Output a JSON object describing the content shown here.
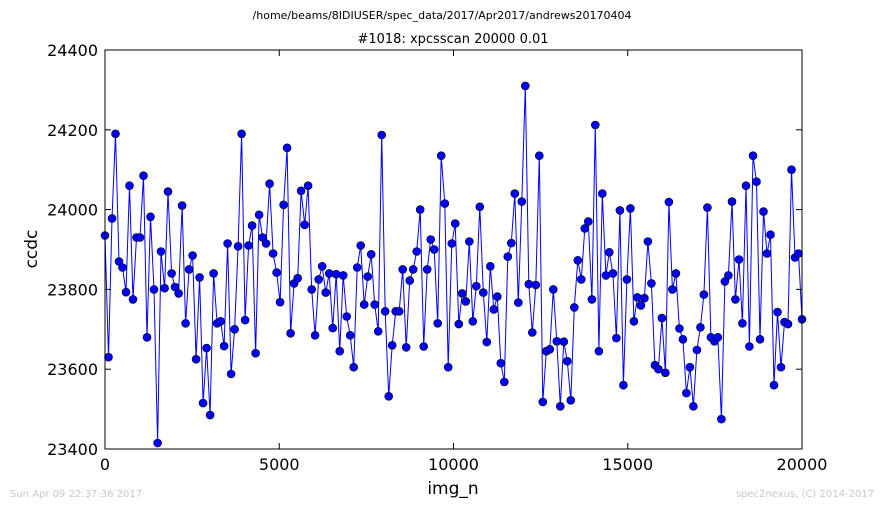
{
  "figure": {
    "suptitle": "/home/beams/8IDIUSER/spec_data/2017/Apr2017/andrews20170404",
    "footer_left": "Sun Apr 09 22:37:36 2017",
    "footer_right": "spec2nexus, (C) 2014-2017"
  },
  "chart_data": {
    "type": "line",
    "title": "#1018: xpcsscan 20000 0.01",
    "xlabel": "img_n",
    "ylabel": "ccdc",
    "xlim": [
      0,
      20000
    ],
    "ylim": [
      23400,
      24400
    ],
    "xticks": [
      0,
      5000,
      10000,
      15000,
      20000
    ],
    "xtick_labels": [
      "0",
      "5000",
      "10000",
      "15000",
      "20000"
    ],
    "yticks": [
      23400,
      23600,
      23800,
      24000,
      24200,
      24400
    ],
    "ytick_labels": [
      "23400",
      "23600",
      "23800",
      "24000",
      "24200",
      "24400"
    ],
    "grid": false,
    "marker": "circle",
    "color": "#0000ff",
    "series": [
      {
        "x": [
          0,
          101,
          201,
          302,
          402,
          503,
          603,
          704,
          804,
          905,
          1005,
          1106,
          1206,
          1307,
          1407,
          1508,
          1608,
          1709,
          1809,
          1910,
          2010,
          2111,
          2211,
          2312,
          2412,
          2513,
          2613,
          2714,
          2814,
          2915,
          3015,
          3116,
          3216,
          3317,
          3417,
          3518,
          3618,
          3719,
          3819,
          3920,
          4020,
          4121,
          4221,
          4322,
          4422,
          4523,
          4623,
          4724,
          4824,
          4925,
          5025,
          5126,
          5226,
          5327,
          5427,
          5528,
          5628,
          5729,
          5829,
          5930,
          6030,
          6131,
          6231,
          6332,
          6432,
          6533,
          6633,
          6734,
          6834,
          6935,
          7035,
          7136,
          7236,
          7337,
          7437,
          7538,
          7638,
          7739,
          7839,
          7940,
          8040,
          8141,
          8241,
          8342,
          8442,
          8543,
          8643,
          8744,
          8844,
          8945,
          9045,
          9146,
          9246,
          9347,
          9447,
          9548,
          9648,
          9749,
          9849,
          9950,
          10050,
          10151,
          10251,
          10352,
          10452,
          10553,
          10653,
          10754,
          10854,
          10955,
          11055,
          11156,
          11256,
          11357,
          11457,
          11558,
          11658,
          11759,
          11859,
          11960,
          12060,
          12161,
          12261,
          12362,
          12462,
          12563,
          12663,
          12764,
          12864,
          12965,
          13065,
          13166,
          13266,
          13367,
          13467,
          13568,
          13668,
          13769,
          13869,
          13970,
          14070,
          14171,
          14271,
          14372,
          14472,
          14573,
          14673,
          14774,
          14874,
          14975,
          15075,
          15176,
          15276,
          15377,
          15477,
          15578,
          15678,
          15779,
          15879,
          15980,
          16080,
          16181,
          16281,
          16382,
          16482,
          16583,
          16683,
          16784,
          16884,
          16985,
          17085,
          17186,
          17286,
          17387,
          17487,
          17588,
          17688,
          17789,
          17889,
          17990,
          18090,
          18191,
          18291,
          18392,
          18492,
          18593,
          18693,
          18794,
          18894,
          18995,
          19095,
          19196,
          19296,
          19397,
          19497,
          19598,
          19698,
          19799,
          19899,
          20000
        ],
        "y": [
          23935,
          23630,
          23978,
          24190,
          23870,
          23855,
          23793,
          24060,
          23775,
          23930,
          23930,
          24085,
          23680,
          23982,
          23800,
          23415,
          23895,
          23803,
          24045,
          23840,
          23806,
          23790,
          24010,
          23715,
          23850,
          23885,
          23625,
          23830,
          23515,
          23653,
          23485,
          23840,
          23715,
          23720,
          23658,
          23915,
          23588,
          23700,
          23908,
          24190,
          23723,
          23910,
          23960,
          23640,
          23987,
          23930,
          23915,
          24065,
          23890,
          23842,
          23768,
          24012,
          24155,
          23690,
          23815,
          23828,
          24047,
          23962,
          24060,
          23800,
          23685,
          23825,
          23858,
          23792,
          23840,
          23703,
          23838,
          23645,
          23835,
          23732,
          23685,
          23605,
          23855,
          23910,
          23762,
          23832,
          23888,
          23762,
          23695,
          24187,
          23745,
          23532,
          23660,
          23745,
          23745,
          23850,
          23655,
          23822,
          23850,
          23895,
          24000,
          23657,
          23850,
          23925,
          23900,
          23715,
          24135,
          24015,
          23605,
          23915,
          23965,
          23713,
          23790,
          23770,
          23920,
          23720,
          23808,
          24007,
          23792,
          23668,
          23858,
          23750,
          23782,
          23615,
          23568,
          23882,
          23916,
          24040,
          23767,
          24020,
          24310,
          23813,
          23692,
          23811,
          24135,
          23518,
          23645,
          23650,
          23800,
          23670,
          23507,
          23669,
          23620,
          23522,
          23755,
          23873,
          23825,
          23953,
          23970,
          23775,
          24212,
          23645,
          24040,
          23835,
          23893,
          23840,
          23678,
          23998,
          23560,
          23825,
          24003,
          23720,
          23780,
          23760,
          23778,
          23920,
          23815,
          23610,
          23600,
          23728,
          23591,
          24019,
          23800,
          23840,
          23702,
          23675,
          23540,
          23605,
          23507,
          23648,
          23705,
          23787,
          24005,
          23680,
          23670,
          23680,
          23475,
          23820,
          23835,
          24020,
          23775,
          23875,
          23715,
          24060,
          23657,
          24135,
          24070,
          23675,
          23995,
          23890,
          23937,
          23560,
          23743,
          23605,
          23718,
          23713,
          24100,
          23880,
          23890,
          23725
        ]
      }
    ]
  }
}
